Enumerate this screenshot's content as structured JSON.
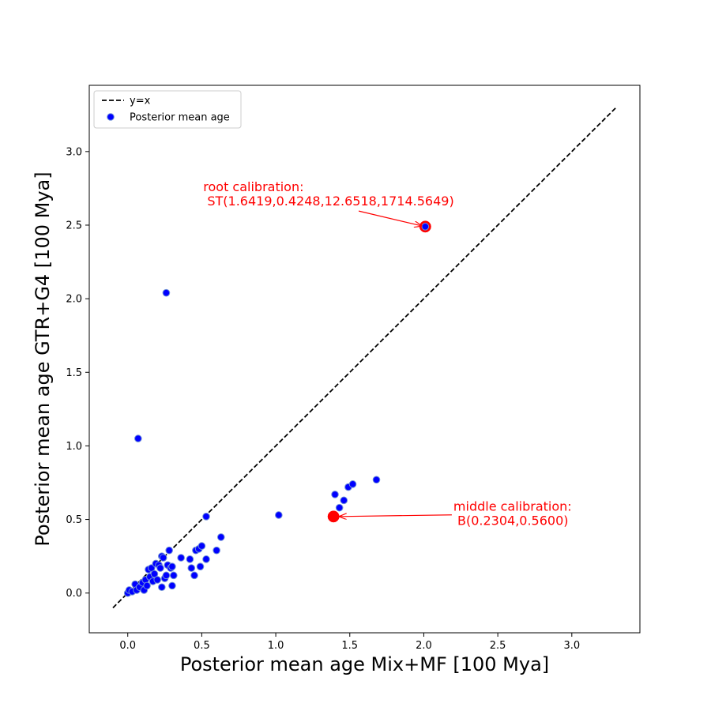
{
  "chart_data": {
    "type": "scatter",
    "title": "",
    "xlabel": "Posterior mean age Mix+MF [100 Mya]",
    "ylabel": "Posterior mean age GTR+G4 [100 Mya]",
    "xlim": [
      -0.26,
      3.46
    ],
    "ylim": [
      -0.27,
      3.45
    ],
    "xticks": [
      0.0,
      0.5,
      1.0,
      1.5,
      2.0,
      2.5,
      3.0
    ],
    "yticks": [
      0.0,
      0.5,
      1.0,
      1.5,
      2.0,
      2.5,
      3.0
    ],
    "xtick_labels": [
      "0.0",
      "0.5",
      "1.0",
      "1.5",
      "2.0",
      "2.5",
      "3.0"
    ],
    "ytick_labels": [
      "0.0",
      "0.5",
      "1.0",
      "1.5",
      "2.0",
      "2.5",
      "3.0"
    ],
    "grid": false,
    "legend": {
      "placement": "top-left",
      "entries": [
        "y=x",
        "Posterior mean age"
      ]
    },
    "reference_line": {
      "name": "y=x",
      "x": [
        -0.1,
        3.3
      ],
      "y": [
        -0.1,
        3.3
      ],
      "style": "dashed",
      "color": "#000000"
    },
    "series": [
      {
        "name": "Posterior mean age",
        "color": "#0000ff",
        "edge_color": "#6f8fd8",
        "points": [
          [
            0.0,
            0.0
          ],
          [
            0.01,
            0.02
          ],
          [
            0.03,
            0.01
          ],
          [
            0.05,
            0.06
          ],
          [
            0.06,
            0.02
          ],
          [
            0.08,
            0.04
          ],
          [
            0.1,
            0.07
          ],
          [
            0.11,
            0.02
          ],
          [
            0.12,
            0.09
          ],
          [
            0.13,
            0.05
          ],
          [
            0.14,
            0.16
          ],
          [
            0.15,
            0.11
          ],
          [
            0.16,
            0.17
          ],
          [
            0.17,
            0.08
          ],
          [
            0.18,
            0.13
          ],
          [
            0.19,
            0.2
          ],
          [
            0.2,
            0.09
          ],
          [
            0.21,
            0.19
          ],
          [
            0.22,
            0.17
          ],
          [
            0.23,
            0.04
          ],
          [
            0.23,
            0.25
          ],
          [
            0.24,
            0.24
          ],
          [
            0.25,
            0.1
          ],
          [
            0.26,
            0.12
          ],
          [
            0.27,
            0.19
          ],
          [
            0.28,
            0.29
          ],
          [
            0.29,
            0.17
          ],
          [
            0.3,
            0.05
          ],
          [
            0.3,
            0.18
          ],
          [
            0.31,
            0.12
          ],
          [
            0.36,
            0.24
          ],
          [
            0.42,
            0.23
          ],
          [
            0.43,
            0.17
          ],
          [
            0.45,
            0.12
          ],
          [
            0.46,
            0.29
          ],
          [
            0.48,
            0.3
          ],
          [
            0.49,
            0.18
          ],
          [
            0.5,
            0.32
          ],
          [
            0.53,
            0.23
          ],
          [
            0.53,
            0.52
          ],
          [
            0.6,
            0.29
          ],
          [
            0.63,
            0.38
          ],
          [
            0.07,
            1.05
          ],
          [
            0.26,
            2.04
          ],
          [
            1.02,
            0.53
          ],
          [
            1.4,
            0.67
          ],
          [
            1.43,
            0.58
          ],
          [
            1.46,
            0.63
          ],
          [
            1.49,
            0.72
          ],
          [
            1.52,
            0.74
          ],
          [
            1.68,
            0.77
          ],
          [
            2.01,
            2.49
          ]
        ]
      }
    ],
    "highlighted_points": [
      {
        "x": 2.01,
        "y": 2.49,
        "color": "#ff0000"
      },
      {
        "x": 1.39,
        "y": 0.52,
        "color": "#ff0000"
      }
    ],
    "annotations": [
      {
        "lines": [
          "root calibration:",
          " ST(1.6419,0.4248,12.6518,1714.5649)"
        ],
        "text_pos": [
          0.51,
          2.73
        ],
        "arrow_to": [
          2.01,
          2.49
        ],
        "color": "#ff0000"
      },
      {
        "lines": [
          "middle calibration:",
          " B(0.2304,0.5600)"
        ],
        "text_pos": [
          2.2,
          0.56
        ],
        "arrow_to": [
          1.41,
          0.52
        ],
        "color": "#ff0000"
      }
    ]
  }
}
